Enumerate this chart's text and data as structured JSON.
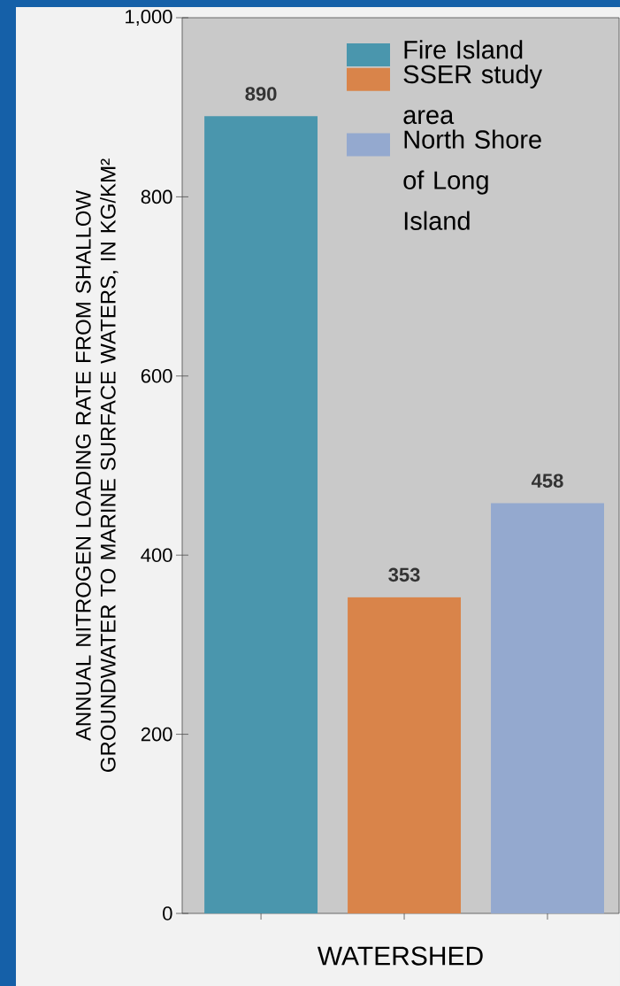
{
  "chart_data": {
    "type": "bar",
    "ylabel": "ANNUAL NITROGEN LOADING RATE FROM SHALLOW GROUNDWATER TO MARINE SURFACE WATERS, IN KG/KM²",
    "xlabel": "WATERSHED",
    "categories": [
      null
    ],
    "series": [
      {
        "name": "Fire Island",
        "color": "#4a96ad",
        "values": [
          890
        ]
      },
      {
        "name": "SSER study area",
        "color": "#d9844a",
        "values": [
          353
        ]
      },
      {
        "name": "North Shore of Long Island",
        "color": "#94a9cf",
        "values": [
          458
        ]
      }
    ],
    "ylim": [
      0,
      1000
    ],
    "yticks": [
      0,
      200,
      400,
      600,
      800,
      {
        "value": 1000,
        "label": "1,000"
      }
    ],
    "tick_labels": "y",
    "data_labels": true,
    "legend": "top right"
  }
}
